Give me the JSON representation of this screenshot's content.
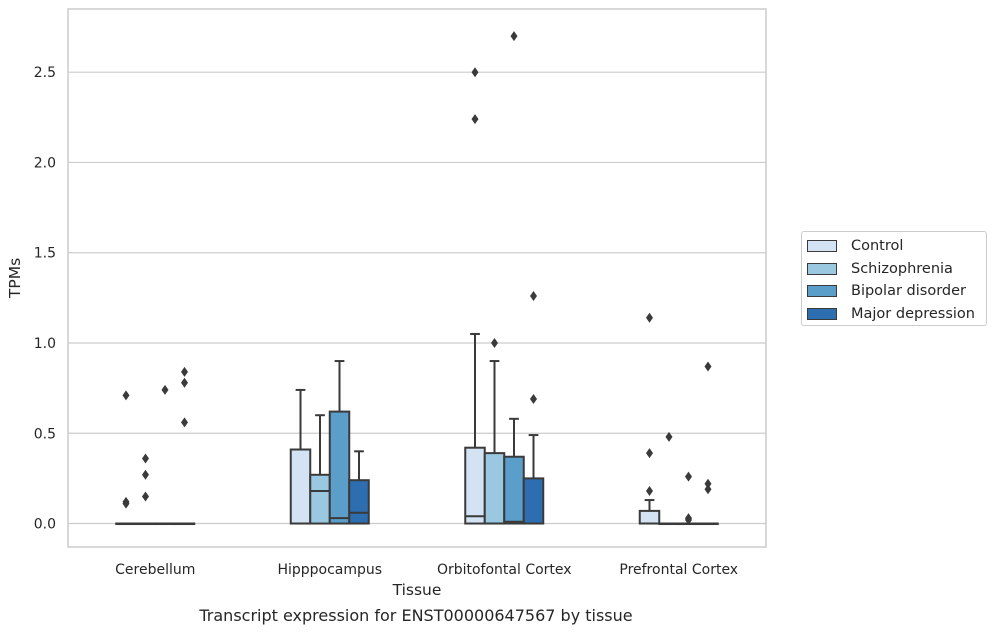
{
  "caption": "Transcript expression for ENST00000647567 by tissue",
  "chart_data": {
    "type": "box",
    "xlabel": "Tissue",
    "ylabel": "TPMs",
    "ylim": [
      -0.13,
      2.85
    ],
    "yticks": [
      "0.0",
      "0.5",
      "1.0",
      "1.5",
      "2.0",
      "2.5"
    ],
    "grid": "horizontal",
    "legend_position": "right",
    "categories": [
      "Cerebellum",
      "Hipppocampus",
      "Orbitofontal Cortex",
      "Prefrontal Cortex"
    ],
    "series": [
      {
        "name": "Control",
        "color": "#d3e3f3",
        "boxes": [
          {
            "q1": 0,
            "median": 0,
            "q3": 0,
            "whisker_low": 0,
            "whisker_high": 0,
            "outliers": [
              0.71,
              0.12,
              0.11
            ]
          },
          {
            "q1": 0,
            "median": 0,
            "q3": 0.41,
            "whisker_low": 0,
            "whisker_high": 0.74,
            "outliers": []
          },
          {
            "q1": 0,
            "median": 0.04,
            "q3": 0.42,
            "whisker_low": 0,
            "whisker_high": 1.05,
            "outliers": [
              2.5,
              2.24
            ]
          },
          {
            "q1": 0,
            "median": 0,
            "q3": 0.07,
            "whisker_low": 0,
            "whisker_high": 0.13,
            "outliers": [
              1.14,
              0.39,
              0.18
            ]
          }
        ]
      },
      {
        "name": "Schizophrenia",
        "color": "#9ac8e0",
        "boxes": [
          {
            "q1": 0,
            "median": 0,
            "q3": 0,
            "whisker_low": 0,
            "whisker_high": 0,
            "outliers": [
              0.36,
              0.27,
              0.15
            ]
          },
          {
            "q1": 0,
            "median": 0.18,
            "q3": 0.27,
            "whisker_low": 0,
            "whisker_high": 0.6,
            "outliers": []
          },
          {
            "q1": 0,
            "median": 0,
            "q3": 0.39,
            "whisker_low": 0,
            "whisker_high": 0.9,
            "outliers": [
              1.0
            ]
          },
          {
            "q1": 0,
            "median": 0,
            "q3": 0,
            "whisker_low": 0,
            "whisker_high": 0,
            "outliers": [
              0.48
            ]
          }
        ]
      },
      {
        "name": "Bipolar disorder",
        "color": "#5a9ec9",
        "boxes": [
          {
            "q1": 0,
            "median": 0,
            "q3": 0,
            "whisker_low": 0,
            "whisker_high": 0,
            "outliers": [
              0.74
            ]
          },
          {
            "q1": 0,
            "median": 0.03,
            "q3": 0.62,
            "whisker_low": 0,
            "whisker_high": 0.9,
            "outliers": []
          },
          {
            "q1": 0,
            "median": 0.01,
            "q3": 0.37,
            "whisker_low": 0,
            "whisker_high": 0.58,
            "outliers": [
              2.7
            ]
          },
          {
            "q1": 0,
            "median": 0,
            "q3": 0,
            "whisker_low": 0,
            "whisker_high": 0,
            "outliers": [
              0.26,
              0.03,
              0.02
            ]
          }
        ]
      },
      {
        "name": "Major depression",
        "color": "#2d6eb0",
        "boxes": [
          {
            "q1": 0,
            "median": 0,
            "q3": 0,
            "whisker_low": 0,
            "whisker_high": 0,
            "outliers": [
              0.84,
              0.78,
              0.56
            ]
          },
          {
            "q1": 0,
            "median": 0.06,
            "q3": 0.24,
            "whisker_low": 0,
            "whisker_high": 0.4,
            "outliers": []
          },
          {
            "q1": 0,
            "median": 0,
            "q3": 0.25,
            "whisker_low": 0,
            "whisker_high": 0.49,
            "outliers": [
              1.26,
              0.69
            ]
          },
          {
            "q1": 0,
            "median": 0,
            "q3": 0,
            "whisker_low": 0,
            "whisker_high": 0,
            "outliers": [
              0.87,
              0.22,
              0.19
            ]
          }
        ]
      }
    ]
  }
}
